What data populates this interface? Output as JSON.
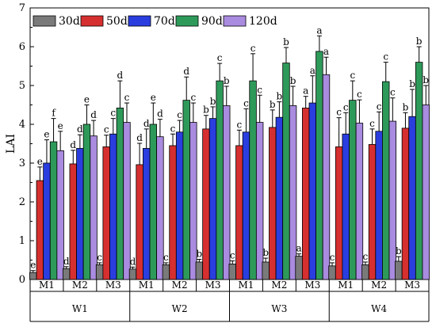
{
  "chart_data": {
    "type": "bar",
    "ylabel": "LAI",
    "ylim": [
      0,
      7
    ],
    "yticks": [
      0,
      1,
      2,
      3,
      4,
      5,
      6,
      7
    ],
    "legend_position": "top-left",
    "grid": false,
    "groups": [
      {
        "label": "W1",
        "subs": [
          "M1",
          "M2",
          "M3"
        ]
      },
      {
        "label": "W2",
        "subs": [
          "M1",
          "M2",
          "M3"
        ]
      },
      {
        "label": "W3",
        "subs": [
          "M1",
          "M2",
          "M3"
        ]
      },
      {
        "label": "W4",
        "subs": [
          "M1",
          "M2",
          "M3"
        ]
      }
    ],
    "categories": [
      "W1-M1",
      "W1-M2",
      "W1-M3",
      "W2-M1",
      "W2-M2",
      "W2-M3",
      "W3-M1",
      "W3-M2",
      "W3-M3",
      "W4-M1",
      "W4-M2",
      "W4-M3"
    ],
    "series": [
      {
        "name": "30d",
        "color": "#7a7a7a",
        "values": [
          0.18,
          0.28,
          0.38,
          0.27,
          0.38,
          0.45,
          0.4,
          0.45,
          0.6,
          0.35,
          0.38,
          0.47
        ],
        "errors": [
          0.05,
          0.05,
          0.05,
          0.05,
          0.05,
          0.07,
          0.08,
          0.1,
          0.06,
          0.08,
          0.07,
          0.12
        ],
        "labels": [
          "e",
          "d",
          "c",
          "d",
          "c",
          "b",
          "c",
          "b",
          "a",
          "c",
          "c",
          "b"
        ]
      },
      {
        "name": "50d",
        "color": "#d62f2f",
        "values": [
          2.55,
          2.98,
          3.42,
          2.96,
          3.45,
          3.88,
          3.45,
          3.92,
          4.42,
          3.42,
          3.48,
          3.9
        ],
        "errors": [
          0.35,
          0.35,
          0.3,
          0.55,
          0.3,
          0.35,
          0.4,
          0.45,
          0.3,
          0.75,
          0.4,
          0.4
        ],
        "labels": [
          "e",
          "d",
          "c",
          "d",
          "c",
          "b",
          "c",
          "b",
          "a",
          "c",
          "c",
          "b"
        ]
      },
      {
        "name": "70d",
        "color": "#2a3ee0",
        "values": [
          3.0,
          3.38,
          3.75,
          3.38,
          3.8,
          4.15,
          3.8,
          4.18,
          4.55,
          3.75,
          3.82,
          4.2
        ],
        "errors": [
          0.6,
          0.35,
          0.4,
          0.5,
          0.3,
          0.3,
          0.6,
          0.4,
          0.7,
          0.55,
          0.5,
          0.7
        ],
        "labels": [
          "e",
          "d",
          "c",
          "d",
          "c",
          "b",
          "c",
          "b",
          "a",
          "c",
          "c",
          "b"
        ]
      },
      {
        "name": "90d",
        "color": "#2e9a5a",
        "values": [
          3.55,
          4.0,
          4.42,
          4.0,
          4.62,
          5.12,
          5.12,
          5.58,
          5.88,
          4.62,
          5.1,
          5.6
        ],
        "errors": [
          0.6,
          0.5,
          0.7,
          0.55,
          0.6,
          0.45,
          0.7,
          0.4,
          0.4,
          0.5,
          0.5,
          0.4
        ],
        "labels": [
          "f",
          "e",
          "d",
          "e",
          "d",
          "c",
          "c",
          "b",
          "a",
          "c",
          "c",
          "b"
        ]
      },
      {
        "name": "120d",
        "color": "#a98bdf",
        "values": [
          3.32,
          3.7,
          4.05,
          3.68,
          4.05,
          4.48,
          4.05,
          4.48,
          5.28,
          4.03,
          4.08,
          4.5
        ],
        "errors": [
          0.5,
          0.4,
          0.5,
          0.45,
          0.5,
          0.5,
          0.7,
          0.5,
          0.45,
          0.6,
          0.6,
          0.5
        ],
        "labels": [
          "e",
          "d",
          "c",
          "d",
          "c",
          "b",
          "c",
          "b",
          "a",
          "c",
          "c",
          "b"
        ]
      }
    ]
  }
}
